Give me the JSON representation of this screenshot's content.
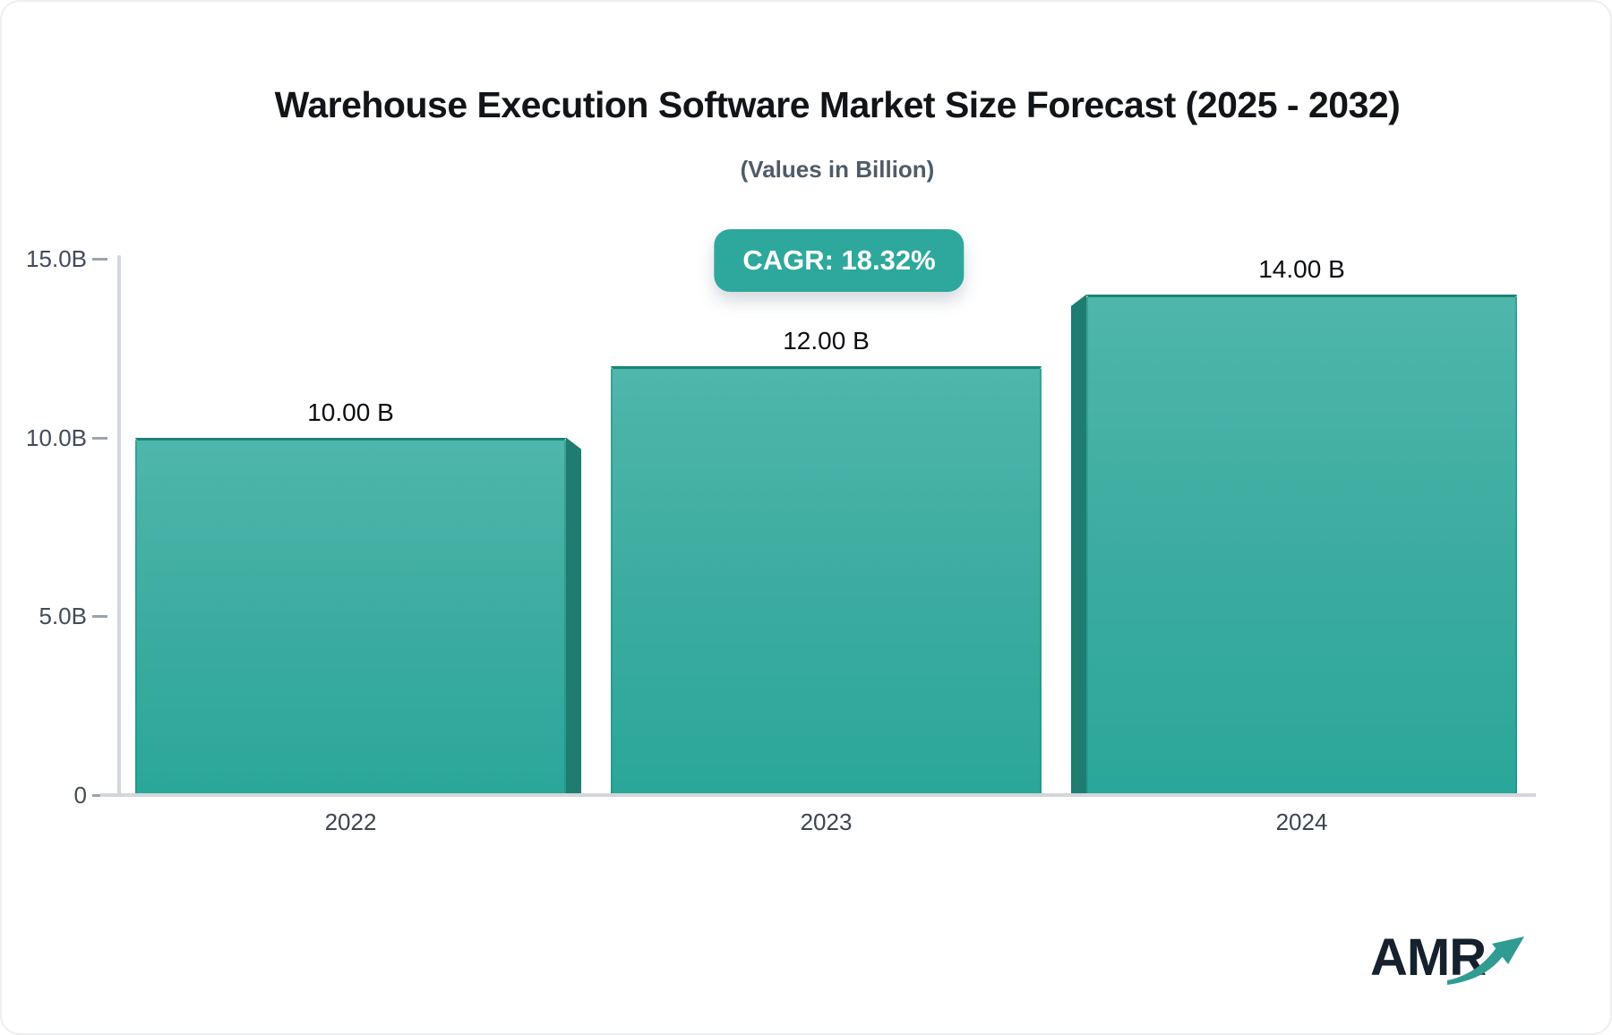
{
  "header": {
    "title": "Warehouse Execution Software Market Size Forecast (2025 - 2032)",
    "subtitle": "(Values in Billion)"
  },
  "badge": {
    "label": "CAGR: 18.32%"
  },
  "chart_data": {
    "type": "bar",
    "title": "Warehouse Execution Software Market Size Forecast (2025 - 2032)",
    "subtitle": "(Values in Billion)",
    "annotation": "CAGR: 18.32%",
    "categories": [
      "2022",
      "2023",
      "2024"
    ],
    "values": [
      10.0,
      12.0,
      14.0
    ],
    "value_labels": [
      "10.00 B",
      "12.00 B",
      "14.00 B"
    ],
    "ylim": [
      0,
      15
    ],
    "yticks": [
      {
        "value": 0,
        "label": "0"
      },
      {
        "value": 5,
        "label": "5.0B"
      },
      {
        "value": 10,
        "label": "10.0B"
      },
      {
        "value": 15,
        "label": "15.0B"
      }
    ],
    "grid": false,
    "legend": false
  },
  "colors": {
    "bar_top": "#4fb6ab",
    "bar_bottom": "#2aa79a",
    "bar_side": "#1e7c70",
    "bar_top_stroke": "#1b8478",
    "badge_bg": "#2ea89d",
    "axis": "#d3d6db",
    "tick_text": "#414b5a",
    "title_text": "#111418",
    "subtitle_text": "#4f5b68",
    "logo_text": "#15212c",
    "logo_arrow": "#2f9b93"
  },
  "logo": {
    "text": "AMR"
  }
}
